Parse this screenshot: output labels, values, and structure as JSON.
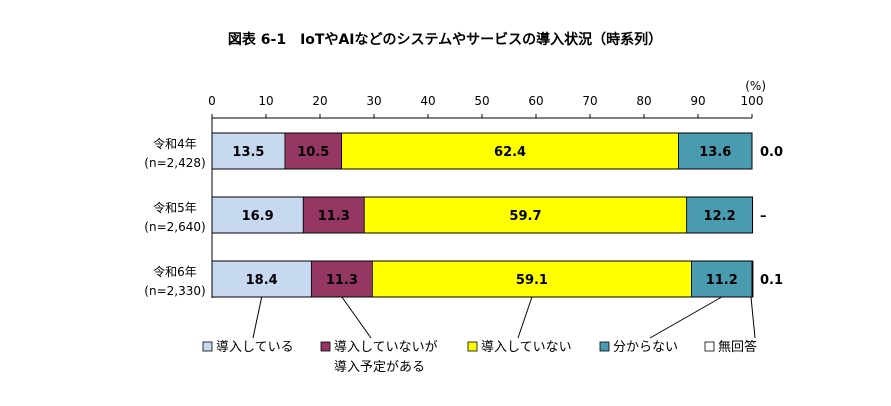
{
  "chart_data": {
    "type": "bar",
    "orientation": "horizontal",
    "stacked": true,
    "title": "図表 6-1　IoTやAIなどのシステムやサービスの導入状況（時系列）",
    "unit": "(%)",
    "xlim": [
      0,
      100
    ],
    "xticks": [
      "0",
      "10",
      "20",
      "30",
      "40",
      "50",
      "60",
      "70",
      "80",
      "90",
      "100"
    ],
    "categories": [
      {
        "label": "令和4年",
        "n": "(n=2,428)"
      },
      {
        "label": "令和5年",
        "n": "(n=2,640)"
      },
      {
        "label": "令和6年",
        "n": "(n=2,330)"
      }
    ],
    "series": [
      {
        "name": "導入している",
        "color": "#c6d9f1",
        "values": [
          13.5,
          16.9,
          18.4
        ],
        "labels": [
          "13.5",
          "16.9",
          "18.4"
        ]
      },
      {
        "name": "導入していないが導入予定がある",
        "name_lines": [
          "導入していないが",
          "導入予定がある"
        ],
        "color": "#953763",
        "text_color": "#ffffff",
        "values": [
          10.5,
          11.3,
          11.3
        ],
        "labels": [
          "10.5",
          "11.3",
          "11.3"
        ]
      },
      {
        "name": "導入していない",
        "color": "#ffff00",
        "values": [
          62.4,
          59.7,
          59.1
        ],
        "labels": [
          "62.4",
          "59.7",
          "59.1"
        ]
      },
      {
        "name": "分からない",
        "color": "#4a9bb0",
        "values": [
          13.6,
          12.2,
          11.2
        ],
        "labels": [
          "13.6",
          "12.2",
          "11.2"
        ]
      },
      {
        "name": "無回答",
        "color": "#ffffff",
        "values": [
          0.0,
          0,
          0.1
        ],
        "labels": [
          "0.0",
          "–",
          "0.1"
        ]
      }
    ],
    "grid": false,
    "legend_position": "bottom"
  }
}
